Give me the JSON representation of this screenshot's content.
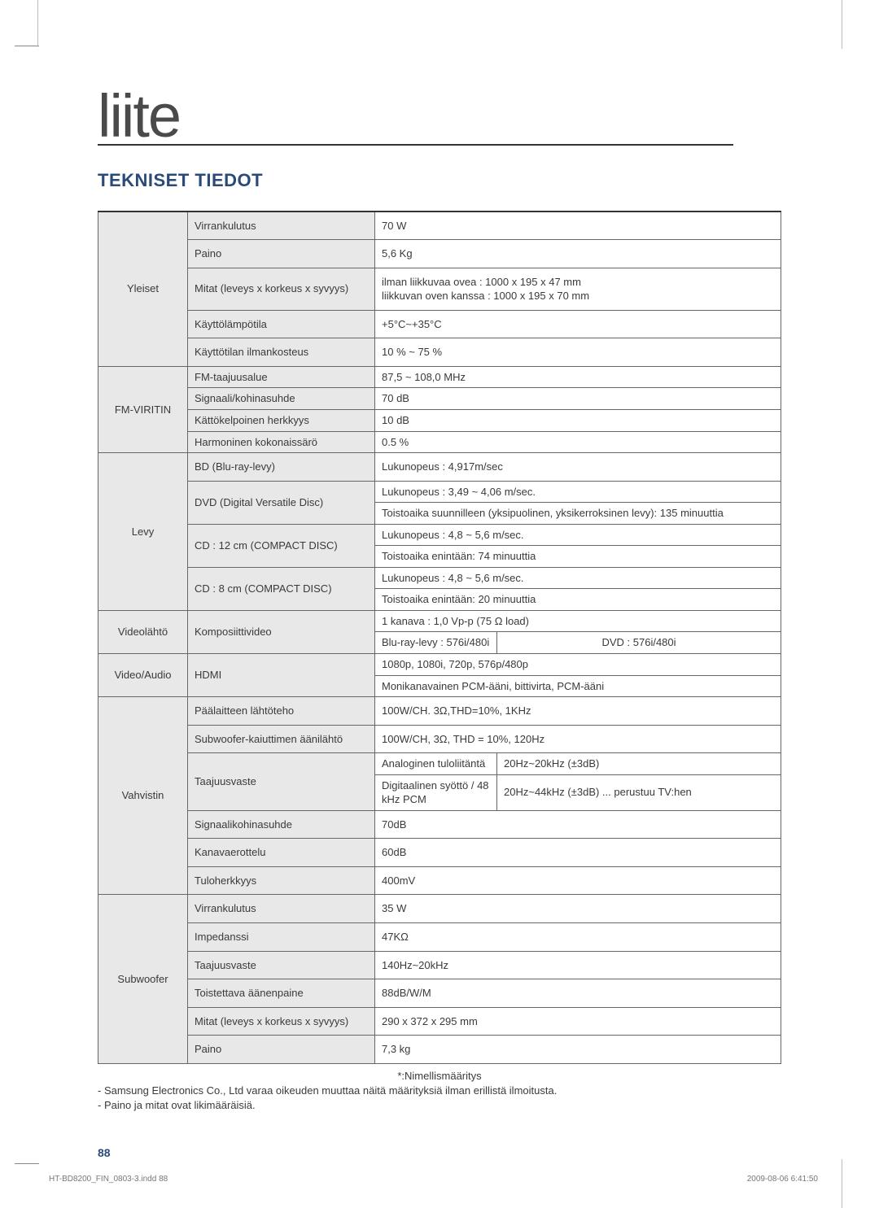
{
  "title_word": "liite",
  "section_heading": "TEKNISET TIEDOT",
  "categories": {
    "yleiset": {
      "label": "Yleiset",
      "rows": [
        {
          "param": "Virrankulutus",
          "value": "70 W"
        },
        {
          "param": "Paino",
          "value": "5,6 Kg"
        },
        {
          "param": "Mitat (leveys x korkeus x syvyys)",
          "value": "ilman liikkuvaa ovea : 1000 x 195 x 47 mm\nliikkuvan oven kanssa : 1000 x 195 x 70 mm"
        },
        {
          "param": "Käyttölämpötila",
          "value": "+5°C~+35°C"
        },
        {
          "param": "Käyttötilan ilmankosteus",
          "value": "10 % ~ 75 %"
        }
      ]
    },
    "fmviritin": {
      "label": "FM-VIRITIN",
      "rows": [
        {
          "param": "FM-taajuusalue",
          "value": "87,5 ~ 108,0 MHz"
        },
        {
          "param": "Signaali/kohinasuhde",
          "value": "70 dB"
        },
        {
          "param": "Kättökelpoinen herkkyys",
          "value": "10 dB"
        },
        {
          "param": "Harmoninen kokonaissärö",
          "value": "0.5 %"
        }
      ]
    },
    "levy": {
      "label": "Levy",
      "rows": [
        {
          "param": "BD (Blu-ray-levy)",
          "lines": [
            "Lukunopeus : 4,917m/sec"
          ]
        },
        {
          "param": "DVD (Digital Versatile Disc)",
          "lines": [
            "Lukunopeus : 3,49 ~ 4,06 m/sec.",
            "Toistoaika suunnilleen (yksipuolinen, yksikerroksinen levy): 135 minuuttia"
          ]
        },
        {
          "param": "CD : 12 cm (COMPACT DISC)",
          "lines": [
            "Lukunopeus : 4,8 ~ 5,6 m/sec.",
            "Toistoaika enintään: 74 minuuttia"
          ]
        },
        {
          "param": "CD : 8 cm (COMPACT DISC)",
          "lines": [
            "Lukunopeus : 4,8 ~ 5,6 m/sec.",
            "Toistoaika enintään: 20 minuuttia"
          ]
        }
      ]
    },
    "videolahto": {
      "label": "Videolähtö",
      "param": "Komposiittivideo",
      "lines": [
        "1 kanava : 1,0 Vp-p (75 Ω load)"
      ],
      "split_left": "Blu-ray-levy : 576i/480i",
      "split_right": "DVD : 576i/480i"
    },
    "videoaudio": {
      "label": "Video/Audio",
      "param": "HDMI",
      "lines": [
        "1080p, 1080i, 720p, 576p/480p",
        "Monikanavainen PCM-ääni, bittivirta, PCM-ääni"
      ]
    },
    "vahvistin": {
      "label": "Vahvistin",
      "simple": [
        {
          "param": "Päälaitteen lähtöteho",
          "value": "100W/CH. 3Ω,THD=10%, 1KHz"
        },
        {
          "param": "Subwoofer-kaiuttimen äänilähtö",
          "value": "100W/CH, 3Ω, THD = 10%, 120Hz"
        }
      ],
      "taajuus_param": "Taajuusvaste",
      "taajuus_rows": [
        {
          "a": "Analoginen tuloliitäntä",
          "b": "20Hz~20kHz (±3dB)"
        },
        {
          "a": "Digitaalinen syöttö / 48 kHz PCM",
          "b": "20Hz~44kHz (±3dB) ... perustuu TV:hen"
        }
      ],
      "tail": [
        {
          "param": "Signaalikohinasuhde",
          "value": "70dB"
        },
        {
          "param": "Kanavaerottelu",
          "value": "60dB"
        },
        {
          "param": "Tuloherkkyys",
          "value": "400mV"
        }
      ]
    },
    "subwoofer": {
      "label": "Subwoofer",
      "rows": [
        {
          "param": "Virrankulutus",
          "value": "35 W"
        },
        {
          "param": "Impedanssi",
          "value": "47KΩ"
        },
        {
          "param": "Taajuusvaste",
          "value": "140Hz~20kHz"
        },
        {
          "param": "Toistettava äänenpaine",
          "value": "88dB/W/M"
        },
        {
          "param": "Mitat (leveys x korkeus x syvyys)",
          "value": "290 x 372 x 295 mm"
        },
        {
          "param": "Paino",
          "value": "7,3 kg"
        }
      ]
    }
  },
  "notes": {
    "line1": "*:Nimellismääritys",
    "line2": "- Samsung Electronics Co., Ltd varaa oikeuden muuttaa näitä määrityksiä ilman erillistä ilmoitusta.",
    "line3": "- Paino ja mitat ovat likimääräisiä."
  },
  "page_number": "88",
  "footer_left": "HT-BD8200_FIN_0803-3.indd   88",
  "footer_right": "2009-08-06   6:41:50"
}
